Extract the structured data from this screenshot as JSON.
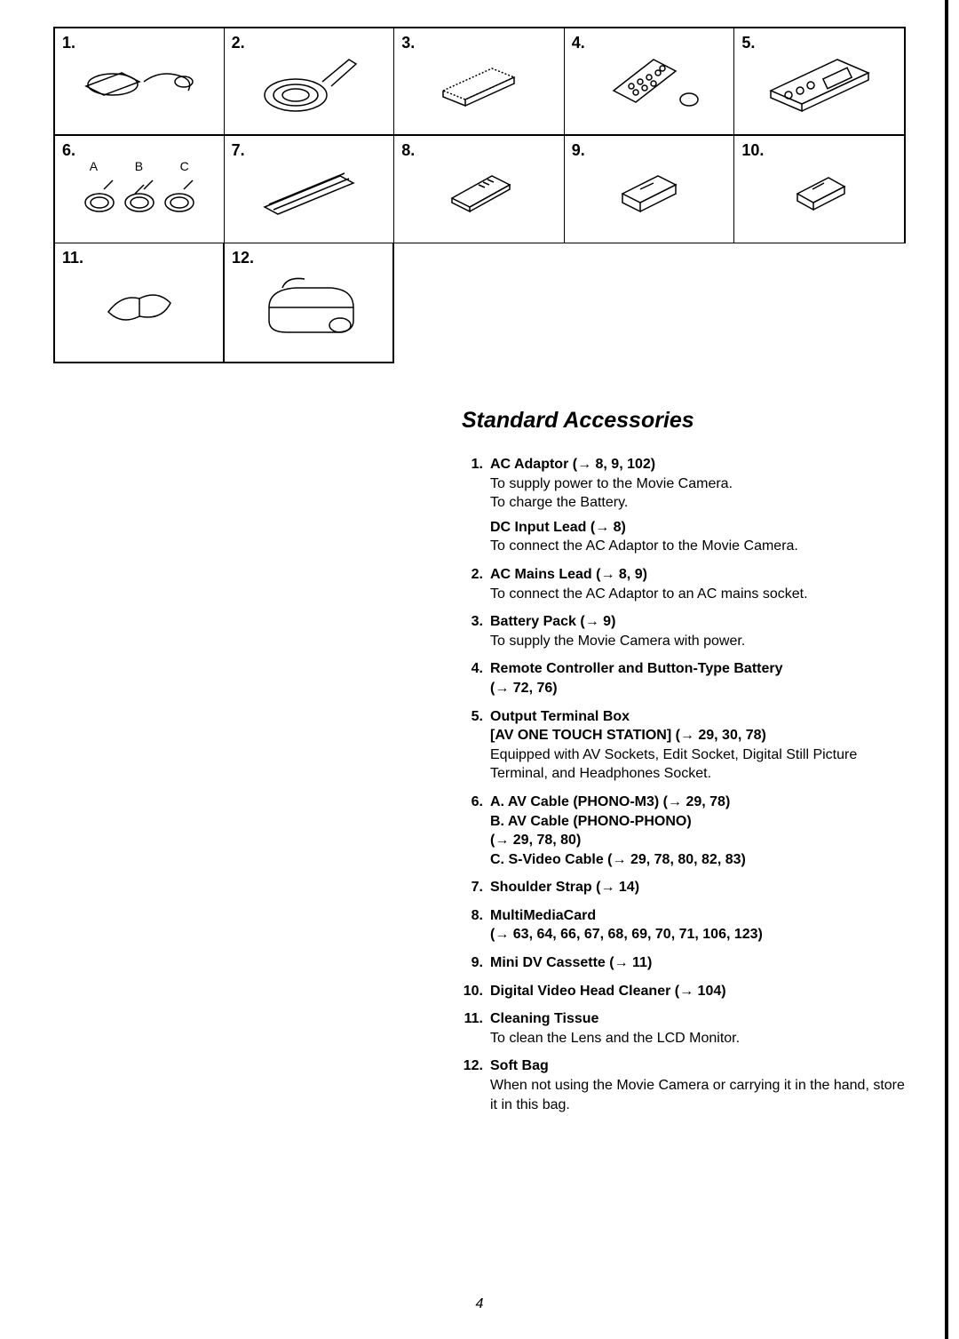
{
  "page_number": "4",
  "heading": "Standard Accessories",
  "grid": {
    "cells": [
      {
        "num": "1."
      },
      {
        "num": "2."
      },
      {
        "num": "3."
      },
      {
        "num": "4."
      },
      {
        "num": "5."
      },
      {
        "num": "6.",
        "sub": [
          "A",
          "B",
          "C"
        ]
      },
      {
        "num": "7."
      },
      {
        "num": "8."
      },
      {
        "num": "9."
      },
      {
        "num": "10."
      },
      {
        "num": "11."
      },
      {
        "num": "12."
      }
    ]
  },
  "accessories": [
    {
      "num": "1.",
      "title": "AC Adaptor (→ 8, 9, 102)",
      "desc": "To supply power to the Movie Camera.\nTo charge the Battery.",
      "sub_title": "DC Input Lead (→ 8)",
      "sub_desc": "To connect the AC Adaptor to the Movie Camera."
    },
    {
      "num": "2.",
      "title": "AC Mains Lead (→ 8, 9)",
      "desc": "To connect the AC Adaptor to an AC mains socket."
    },
    {
      "num": "3.",
      "title": "Battery Pack (→ 9)",
      "desc": "To supply the Movie Camera with power."
    },
    {
      "num": "4.",
      "title": "Remote Controller and Button-Type Battery\n(→ 72, 76)"
    },
    {
      "num": "5.",
      "title": "Output Terminal Box\n[AV ONE TOUCH STATION] (→ 29, 30, 78)",
      "desc": "Equipped with AV Sockets, Edit Socket, Digital Still Picture Terminal, and Headphones Socket."
    },
    {
      "num": "6.",
      "title": "A. AV Cable (PHONO-M3) (→ 29, 78)\nB. AV Cable (PHONO-PHONO)\n     (→ 29, 78, 80)\nC. S-Video Cable (→ 29, 78, 80, 82, 83)"
    },
    {
      "num": "7.",
      "title": "Shoulder Strap (→ 14)"
    },
    {
      "num": "8.",
      "title": "MultiMediaCard\n(→ 63, 64, 66, 67, 68, 69, 70, 71, 106, 123)"
    },
    {
      "num": "9.",
      "title": "Mini DV Cassette (→ 11)"
    },
    {
      "num": "10.",
      "title": "Digital Video Head Cleaner (→ 104)"
    },
    {
      "num": "11.",
      "title": "Cleaning Tissue",
      "desc": "To clean the Lens and the LCD Monitor."
    },
    {
      "num": "12.",
      "title": "Soft Bag",
      "desc": "When not using the Movie Camera or carrying it in the hand, store it in this bag."
    }
  ],
  "colors": {
    "text": "#000000",
    "background": "#ffffff",
    "border": "#000000"
  },
  "typography": {
    "heading_fontsize": 25,
    "body_fontsize": 16,
    "cellnum_fontsize": 18
  }
}
